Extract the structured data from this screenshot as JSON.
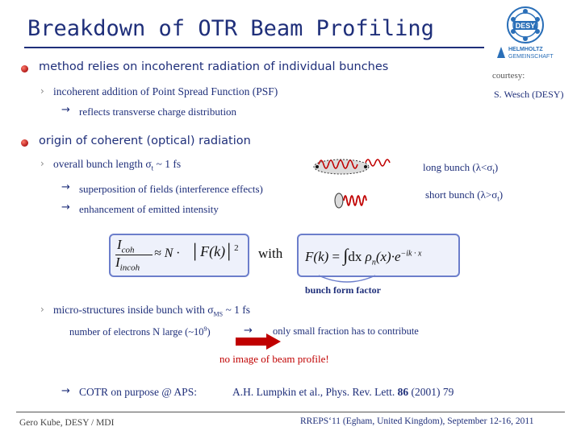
{
  "slide": {
    "title": "Breakdown of OTR Beam Profiling",
    "logo": {
      "org_top": "DESY",
      "org_line1": "HELMHOLTZ",
      "org_line2": "GEMEINSCHAFT"
    },
    "courtesy_label": "courtesy:",
    "courtesy_name": "S. Wesch (DESY)",
    "bullet1": "method relies on incoherent radiation of individual bunches",
    "sub1": "incoherent addition of  Point Spread Function (PSF)",
    "sub1_arrow": "→",
    "sub1_result": "reflects transverse charge distribution",
    "bullet2": "origin of coherent (optical) radiation",
    "sub2": "overall bunch length σ",
    "sub2_sub": "t",
    "sub2_tail": " ~ 1 fs",
    "arrow_a": "→",
    "point_a": "superposition of fields (interference effects)",
    "arrow_b": "→",
    "point_b": "enhancement of emitted intensity",
    "long_bunch": "long bunch (λ<σ",
    "long_bunch_sub": "t",
    "long_bunch_end": ")",
    "short_bunch": "short bunch (λ>σ",
    "short_bunch_sub": "t",
    "short_bunch_end": ")",
    "formula_left": {
      "num": "I",
      "num_sub": "coh",
      "den": "I",
      "den_sub": "incoh",
      "rel": "≈ N ·",
      "F": "F",
      "k": "k",
      "exp": "2"
    },
    "with_label": "with",
    "formula_right": {
      "lhs": "F",
      "k": "k",
      "eq": "=",
      "int": "∫",
      "dx": "dx",
      "rho": "ρ",
      "rho_sub": "n",
      "x": "x",
      "e": "e",
      "exp": "−ik · x"
    },
    "form_factor_label": "bunch form factor",
    "sub3": "micro-structures inside bunch with σ",
    "sub3_sub": "MS",
    "sub3_tail": " ~ 1 fs",
    "electrons": "number of electrons N large (~10",
    "electrons_exp": "9",
    "electrons_end": ")",
    "arrow_c": "→",
    "small_fraction": "only small fraction has to contribute",
    "no_image": "no image of beam profile!",
    "arrow_d": "→",
    "cotr": "COTR on purpose @ APS:",
    "reference_pre": "A.H. Lumpkin et al.,  Phys. Rev. Lett. ",
    "reference_vol": "86",
    "reference_post": " (2001) 79",
    "footer_left": "Gero Kube, DESY / MDI",
    "footer_right": "RREPS‘11 (Egham, United Kingdom), September 12-16, 2011"
  },
  "colors": {
    "title": "#1f2f7a",
    "accent_red": "#c00000",
    "box_border": "#6c7ecb",
    "box_fill": "#eef1fb"
  }
}
